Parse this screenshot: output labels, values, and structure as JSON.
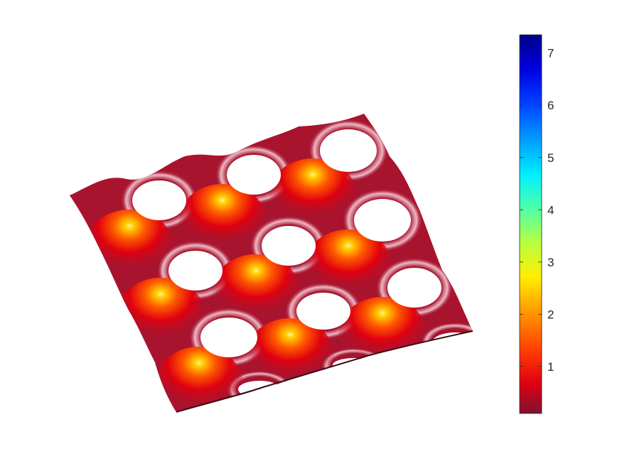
{
  "chart_data": {
    "type": "heatmap",
    "title": "",
    "xlabel": "",
    "ylabel": "",
    "view": "3d-surface",
    "axes_visible": false,
    "surface": {
      "lattice": "triangular",
      "peak_rows": [
        [
          0.0,
          0.0,
          0.0
        ],
        [
          0.0,
          0.0,
          0.0
        ],
        [
          0.0,
          0.0,
          0.0
        ],
        [
          0.0,
          0.0,
          0.0
        ]
      ],
      "peak_value": 2.9,
      "base_value": 0.3,
      "holes": true
    },
    "colorbar": {
      "colormap": "jet-reversed",
      "clim": [
        0.1,
        7.35
      ],
      "ticks": [
        1,
        2,
        3,
        4,
        5,
        6,
        7
      ],
      "tick_labels": [
        "1",
        "2",
        "3",
        "4",
        "5",
        "6",
        "7"
      ]
    },
    "colors": {
      "low": "#7f1230",
      "peak_high": "#ffd000",
      "highlight": "#ffffff"
    }
  }
}
